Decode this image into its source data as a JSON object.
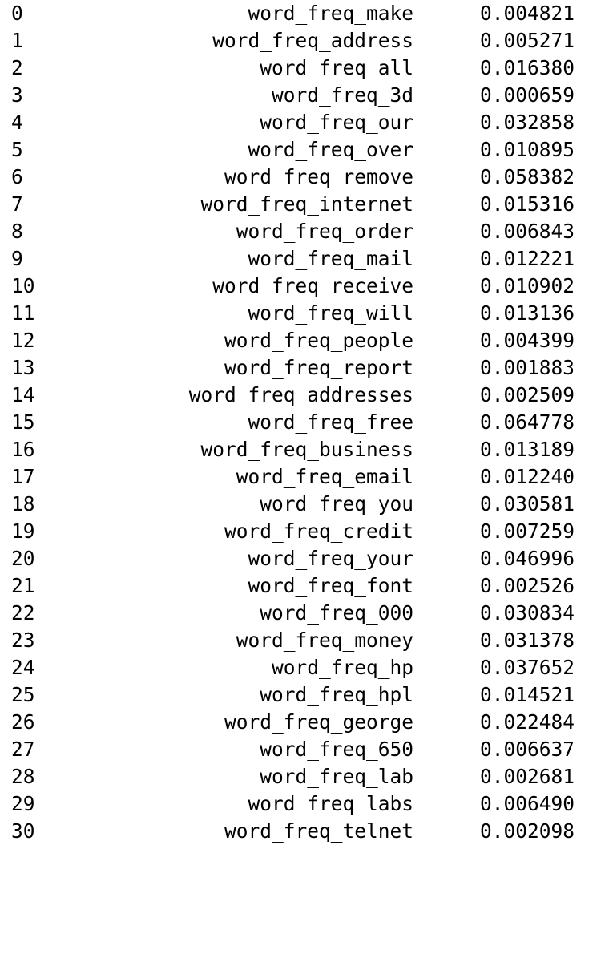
{
  "table": {
    "rows": [
      {
        "index": "0",
        "feature": "word_freq_make",
        "value": "0.004821"
      },
      {
        "index": "1",
        "feature": "word_freq_address",
        "value": "0.005271"
      },
      {
        "index": "2",
        "feature": "word_freq_all",
        "value": "0.016380"
      },
      {
        "index": "3",
        "feature": "word_freq_3d",
        "value": "0.000659"
      },
      {
        "index": "4",
        "feature": "word_freq_our",
        "value": "0.032858"
      },
      {
        "index": "5",
        "feature": "word_freq_over",
        "value": "0.010895"
      },
      {
        "index": "6",
        "feature": "word_freq_remove",
        "value": "0.058382"
      },
      {
        "index": "7",
        "feature": "word_freq_internet",
        "value": "0.015316"
      },
      {
        "index": "8",
        "feature": "word_freq_order",
        "value": "0.006843"
      },
      {
        "index": "9",
        "feature": "word_freq_mail",
        "value": "0.012221"
      },
      {
        "index": "10",
        "feature": "word_freq_receive",
        "value": "0.010902"
      },
      {
        "index": "11",
        "feature": "word_freq_will",
        "value": "0.013136"
      },
      {
        "index": "12",
        "feature": "word_freq_people",
        "value": "0.004399"
      },
      {
        "index": "13",
        "feature": "word_freq_report",
        "value": "0.001883"
      },
      {
        "index": "14",
        "feature": "word_freq_addresses",
        "value": "0.002509"
      },
      {
        "index": "15",
        "feature": "word_freq_free",
        "value": "0.064778"
      },
      {
        "index": "16",
        "feature": "word_freq_business",
        "value": "0.013189"
      },
      {
        "index": "17",
        "feature": "word_freq_email",
        "value": "0.012240"
      },
      {
        "index": "18",
        "feature": "word_freq_you",
        "value": "0.030581"
      },
      {
        "index": "19",
        "feature": "word_freq_credit",
        "value": "0.007259"
      },
      {
        "index": "20",
        "feature": "word_freq_your",
        "value": "0.046996"
      },
      {
        "index": "21",
        "feature": "word_freq_font",
        "value": "0.002526"
      },
      {
        "index": "22",
        "feature": "word_freq_000",
        "value": "0.030834"
      },
      {
        "index": "23",
        "feature": "word_freq_money",
        "value": "0.031378"
      },
      {
        "index": "24",
        "feature": "word_freq_hp",
        "value": "0.037652"
      },
      {
        "index": "25",
        "feature": "word_freq_hpl",
        "value": "0.014521"
      },
      {
        "index": "26",
        "feature": "word_freq_george",
        "value": "0.022484"
      },
      {
        "index": "27",
        "feature": "word_freq_650",
        "value": "0.006637"
      },
      {
        "index": "28",
        "feature": "word_freq_lab",
        "value": "0.002681"
      },
      {
        "index": "29",
        "feature": "word_freq_labs",
        "value": "0.006490"
      },
      {
        "index": "30",
        "feature": "word_freq_telnet",
        "value": "0.002098"
      }
    ]
  }
}
